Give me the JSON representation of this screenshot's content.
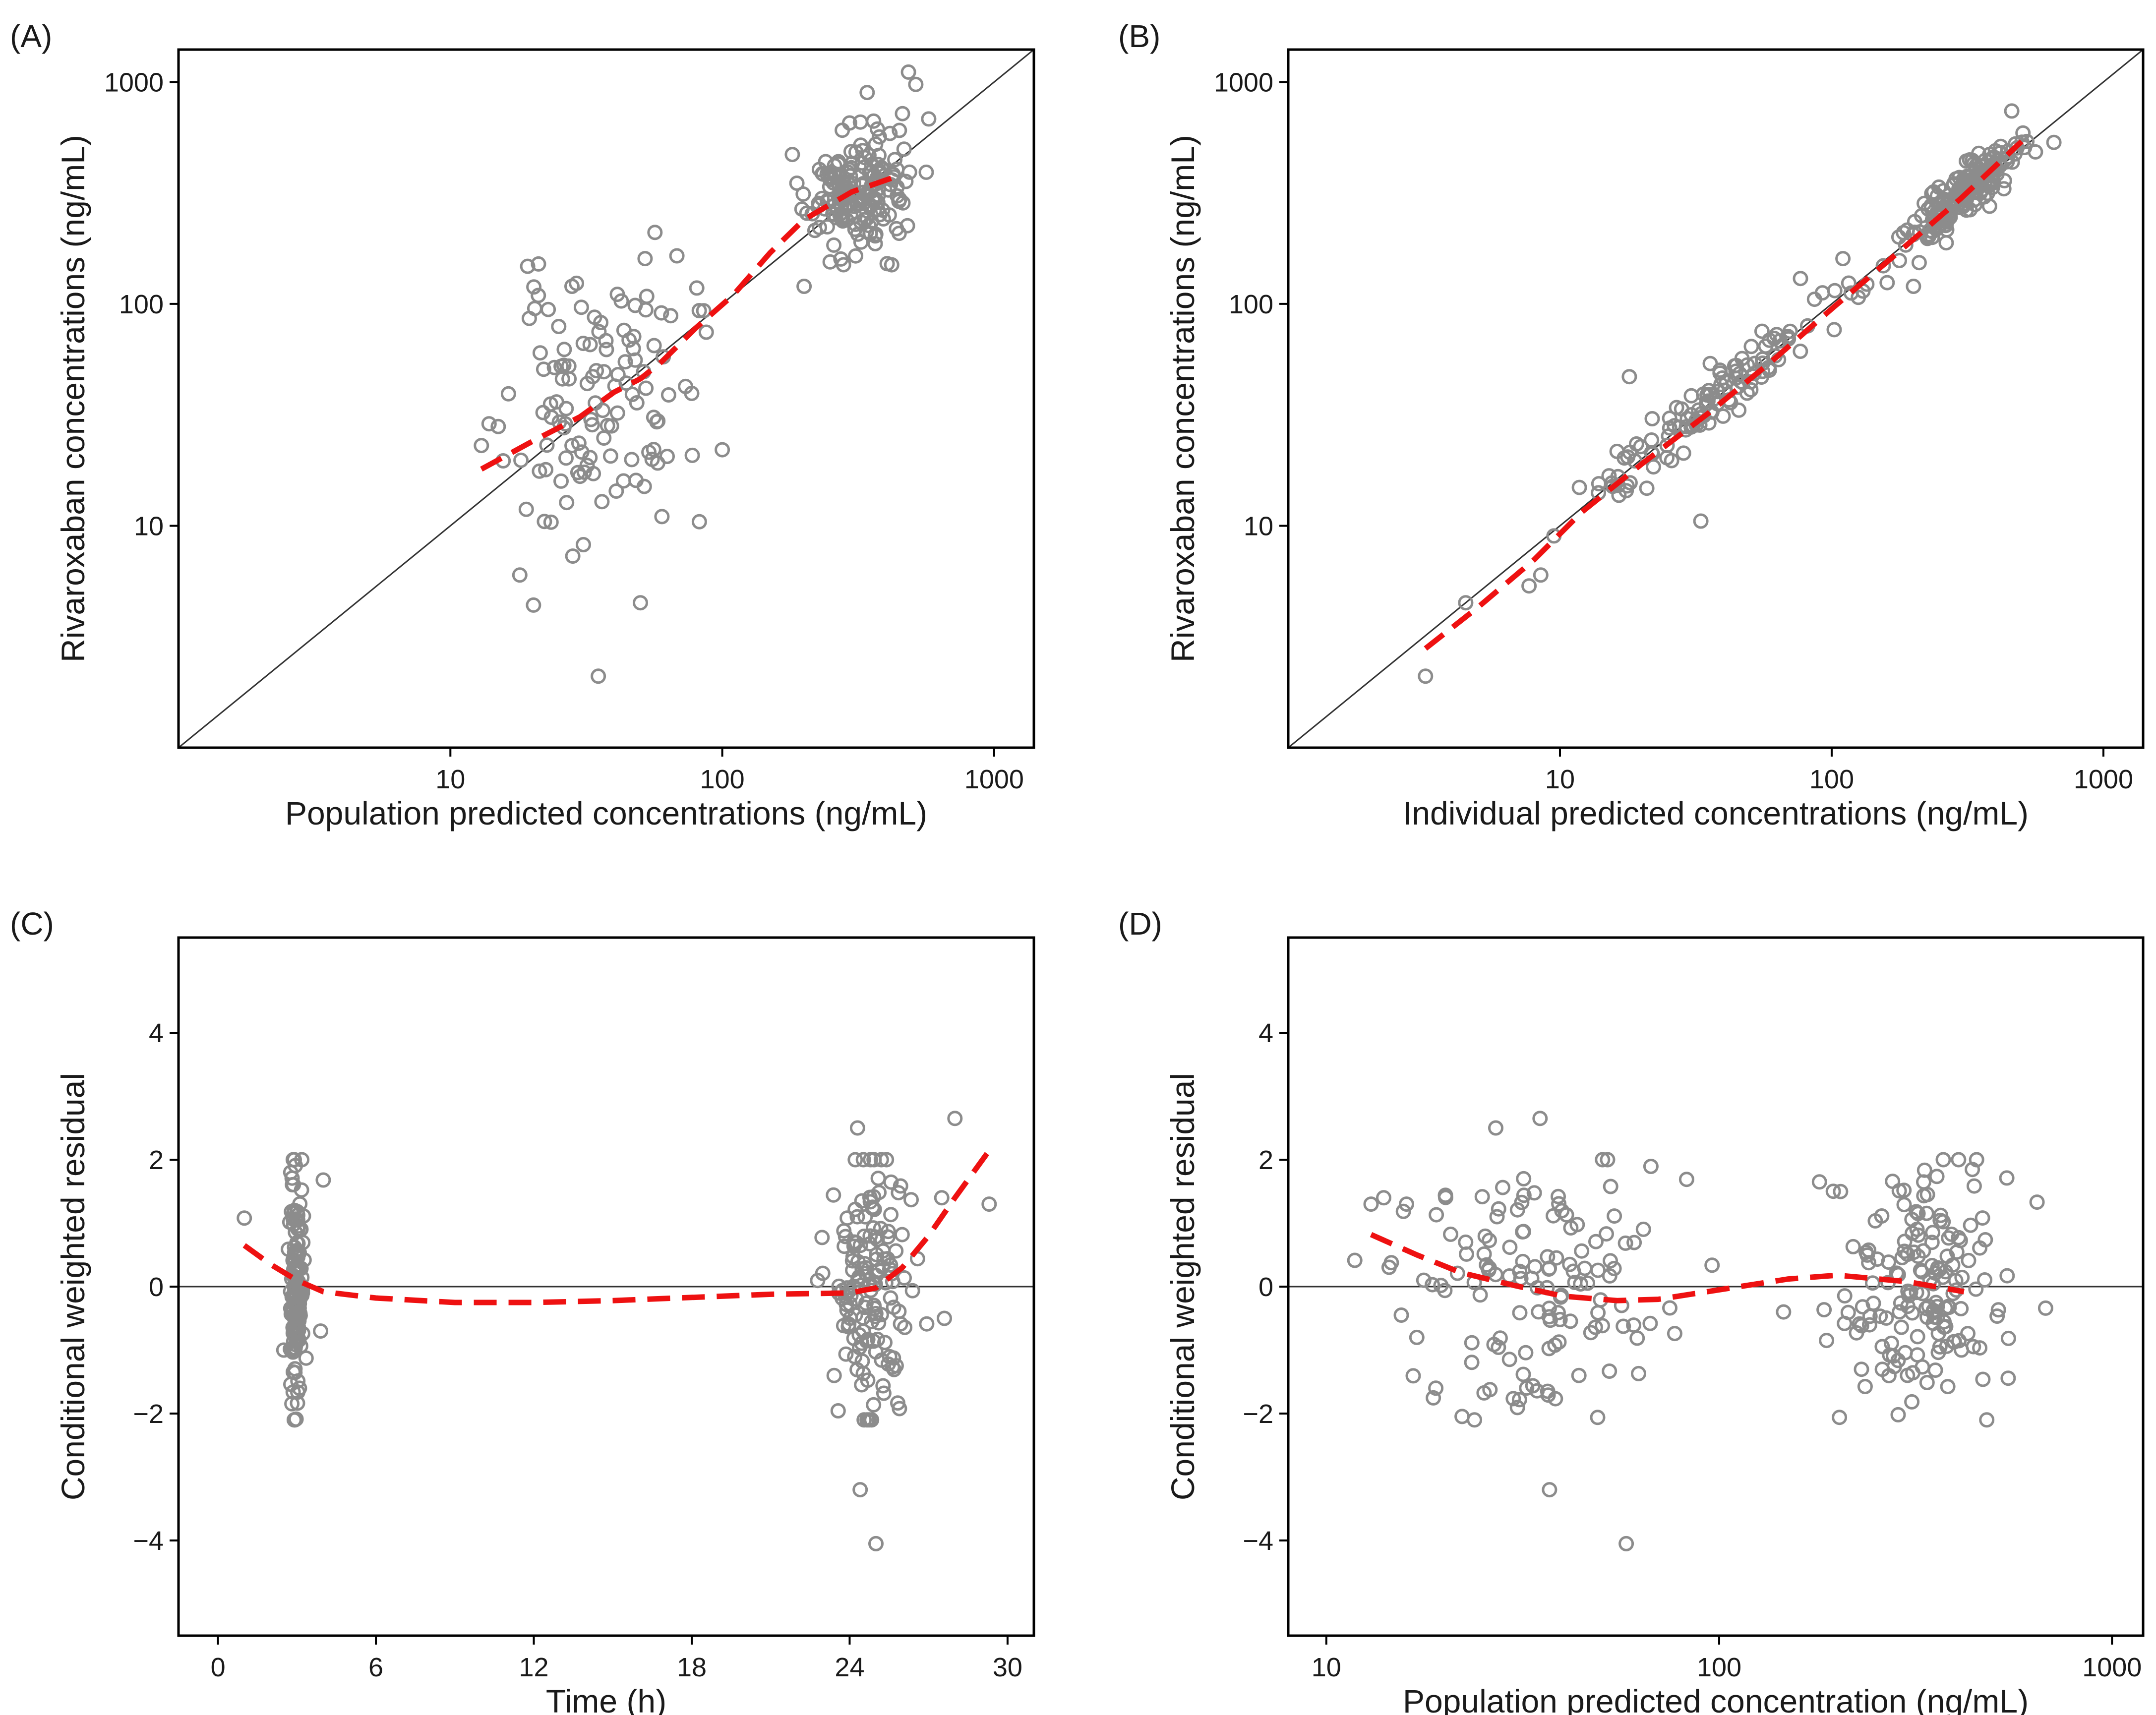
{
  "figure": {
    "marker_color": "#8c8c8c",
    "smooth_color": "#ee1111",
    "reference_color": "#333333",
    "frame_color": "#000000"
  },
  "chart_data": [
    {
      "id": "A",
      "panel_label": "(A)",
      "type": "scatter",
      "xscale": "log",
      "yscale": "log",
      "xlim": [
        1,
        1400
      ],
      "ylim": [
        1,
        1400
      ],
      "xlabel": "Population predicted concentrations (ng/mL)",
      "ylabel": "Rivaroxaban concentrations (ng/mL)",
      "xticks": [
        10,
        100,
        1000
      ],
      "xtick_labels": [
        "10",
        "100",
        "1000"
      ],
      "yticks": [
        10,
        100,
        1000
      ],
      "ytick_labels": [
        "10",
        "100",
        "1000"
      ],
      "reference_line": "identity",
      "points": {
        "seed": 11,
        "clusters": [
          {
            "n": 120,
            "center": [
              35,
              35
            ],
            "spread": [
              0.17,
              0.3
            ],
            "coupling": 0.2
          },
          {
            "n": 170,
            "center": [
              315,
              320
            ],
            "spread": [
              0.09,
              0.14
            ],
            "coupling": 0.3
          }
        ],
        "extra": [
          [
            35,
            2.1
          ],
          [
            18,
            6
          ],
          [
            50,
            4.5
          ],
          [
            52,
            160
          ],
          [
            13,
            23
          ],
          [
            15,
            28
          ],
          [
            28,
            120
          ],
          [
            60,
            11
          ],
          [
            480,
            225
          ],
          [
            460,
            720
          ],
          [
            420,
            150
          ],
          [
            200,
            120
          ]
        ]
      },
      "smooth_line": [
        [
          13,
          18
        ],
        [
          20,
          24
        ],
        [
          30,
          31
        ],
        [
          40,
          40
        ],
        [
          50,
          46
        ],
        [
          60,
          55
        ],
        [
          80,
          78
        ],
        [
          110,
          110
        ],
        [
          150,
          170
        ],
        [
          200,
          240
        ],
        [
          300,
          320
        ],
        [
          450,
          380
        ]
      ]
    },
    {
      "id": "B",
      "panel_label": "(B)",
      "type": "scatter",
      "xscale": "log",
      "yscale": "log",
      "xlim": [
        1,
        1400
      ],
      "ylim": [
        1,
        1400
      ],
      "xlabel": "Individual predicted concentrations (ng/mL)",
      "ylabel": "Rivaroxaban concentrations (ng/mL)",
      "xticks": [
        10,
        100,
        1000
      ],
      "xtick_labels": [
        "10",
        "100",
        "1000"
      ],
      "yticks": [
        10,
        100,
        1000
      ],
      "ytick_labels": [
        "10",
        "100",
        "1000"
      ],
      "reference_line": "identity",
      "points": {
        "seed": 23,
        "clusters": [
          {
            "n": 120,
            "center": [
              36,
              36
            ],
            "spread": [
              0.26,
              0.07
            ],
            "coupling": 1.0
          },
          {
            "n": 170,
            "center": [
              300,
              305
            ],
            "spread": [
              0.1,
              0.06
            ],
            "coupling": 1.0
          }
        ],
        "extra": [
          [
            3.2,
            2.1
          ],
          [
            4.5,
            4.5
          ],
          [
            8.5,
            6
          ],
          [
            9.5,
            9
          ],
          [
            33,
            10.5
          ],
          [
            18,
            47
          ],
          [
            110,
            160
          ],
          [
            460,
            740
          ],
          [
            200,
            120
          ]
        ]
      },
      "smooth_line": [
        [
          3.2,
          2.8
        ],
        [
          5,
          4.3
        ],
        [
          8,
          7
        ],
        [
          12,
          11.5
        ],
        [
          20,
          19
        ],
        [
          35,
          32
        ],
        [
          60,
          55
        ],
        [
          100,
          95
        ],
        [
          180,
          175
        ],
        [
          300,
          300
        ],
        [
          500,
          540
        ]
      ]
    },
    {
      "id": "C",
      "panel_label": "(C)",
      "type": "scatter",
      "xscale": "linear",
      "yscale": "linear",
      "xlim": [
        -1.5,
        31
      ],
      "ylim": [
        -5.5,
        5.5
      ],
      "xlabel": "Time (h)",
      "ylabel": "Conditional weighted residual",
      "xticks": [
        0,
        6,
        12,
        18,
        24,
        30
      ],
      "xtick_labels": [
        "0",
        "6",
        "12",
        "18",
        "24",
        "30"
      ],
      "yticks": [
        -4,
        -2,
        0,
        2,
        4
      ],
      "ytick_labels": [
        "−4",
        "−2",
        "0",
        "2",
        "4"
      ],
      "reference_line": "zero",
      "points": {
        "seed": 37,
        "clusters": [
          {
            "n": 140,
            "center": [
              3,
              0
            ],
            "spread": [
              0.12,
              0.95
            ],
            "coupling": 0
          },
          {
            "n": 150,
            "center": [
              24.8,
              0
            ],
            "spread": [
              0.75,
              1.0
            ],
            "coupling": 0
          }
        ],
        "extra": [
          [
            1.0,
            1.08
          ],
          [
            2.5,
            -1.0
          ],
          [
            4.0,
            1.68
          ],
          [
            3.9,
            -0.7
          ],
          [
            28.0,
            2.65
          ],
          [
            24.3,
            2.5
          ],
          [
            29.3,
            1.3
          ],
          [
            24.4,
            -3.2
          ],
          [
            25.0,
            -4.05
          ],
          [
            27.5,
            1.4
          ],
          [
            27.6,
            -0.5
          ]
        ]
      },
      "smooth_line": [
        [
          1,
          0.65
        ],
        [
          2,
          0.35
        ],
        [
          3,
          0.1
        ],
        [
          4,
          -0.08
        ],
        [
          6,
          -0.18
        ],
        [
          9,
          -0.25
        ],
        [
          12,
          -0.25
        ],
        [
          15,
          -0.22
        ],
        [
          18,
          -0.17
        ],
        [
          21,
          -0.12
        ],
        [
          24,
          -0.1
        ],
        [
          25,
          -0.02
        ],
        [
          26,
          0.3
        ],
        [
          27,
          0.8
        ],
        [
          28,
          1.4
        ],
        [
          29.4,
          2.2
        ]
      ]
    },
    {
      "id": "D",
      "panel_label": "(D)",
      "type": "scatter",
      "xscale": "log",
      "yscale": "linear",
      "xlim": [
        8,
        1200
      ],
      "ylim": [
        -5.5,
        5.5
      ],
      "xlabel": "Population predicted concentration (ng/mL)",
      "ylabel": "Conditional weighted residual",
      "xticks": [
        10,
        100,
        1000
      ],
      "xtick_labels": [
        "10",
        "100",
        "1000"
      ],
      "yticks": [
        -4,
        -2,
        0,
        2,
        4
      ],
      "ytick_labels": [
        "−4",
        "−2",
        "0",
        "2",
        "4"
      ],
      "reference_line": "zero",
      "points": {
        "seed": 53,
        "clusters": [
          {
            "n": 130,
            "center": [
              34,
              0
            ],
            "spread": [
              0.17,
              0.95
            ],
            "coupling": 0
          },
          {
            "n": 160,
            "center": [
              320,
              0
            ],
            "spread": [
              0.1,
              0.95
            ],
            "coupling": 0
          }
        ],
        "extra": [
          [
            13,
            1.3
          ],
          [
            14,
            1.4
          ],
          [
            16,
            1.3
          ],
          [
            17,
            -0.8
          ],
          [
            19,
            -1.6
          ],
          [
            27,
            2.5
          ],
          [
            35,
            2.65
          ],
          [
            37,
            -3.2
          ],
          [
            58,
            -4.05
          ],
          [
            180,
            1.65
          ],
          [
            480,
            -2.1
          ],
          [
            52,
            2.0
          ]
        ]
      },
      "smooth_line": [
        [
          13,
          0.82
        ],
        [
          17,
          0.5
        ],
        [
          22,
          0.22
        ],
        [
          30,
          0.02
        ],
        [
          40,
          -0.15
        ],
        [
          55,
          -0.22
        ],
        [
          70,
          -0.2
        ],
        [
          100,
          -0.05
        ],
        [
          150,
          0.12
        ],
        [
          200,
          0.18
        ],
        [
          300,
          0.08
        ],
        [
          420,
          -0.08
        ]
      ]
    }
  ]
}
